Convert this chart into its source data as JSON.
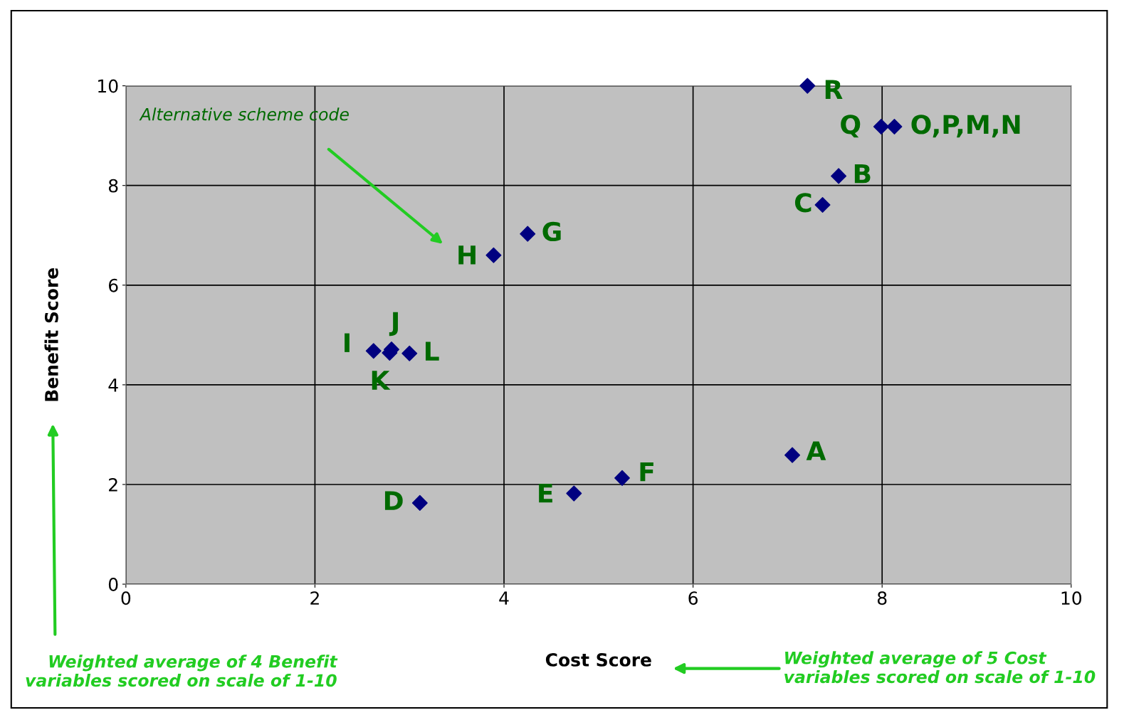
{
  "chart_data": {
    "type": "scatter",
    "xlabel": "Cost Score",
    "ylabel": "Benefit Score",
    "xlim": [
      0,
      10
    ],
    "ylim": [
      0,
      10
    ],
    "xticks": [
      0,
      2,
      4,
      6,
      8,
      10
    ],
    "yticks": [
      0,
      2,
      4,
      6,
      8,
      10
    ],
    "grid": true,
    "marker": "diamond",
    "legend": false,
    "series": [
      {
        "color": "#000080",
        "x": [
          7.21,
          7.99,
          8.13,
          7.54,
          7.37,
          4.25,
          3.89,
          2.62,
          2.81,
          2.79,
          3.0,
          7.05,
          5.25,
          4.74,
          3.11
        ],
        "values": [
          10.0,
          9.18,
          9.18,
          8.19,
          7.61,
          7.03,
          6.6,
          4.68,
          4.71,
          4.64,
          4.63,
          2.59,
          2.13,
          1.82,
          1.63
        ]
      }
    ],
    "annotations": [
      {
        "text": "R",
        "x": 7.21,
        "y": 10.0
      },
      {
        "text": "Q",
        "x": 7.99,
        "y": 9.18
      },
      {
        "text": "O,P,M,N",
        "x": 8.13,
        "y": 9.18
      },
      {
        "text": "B",
        "x": 7.54,
        "y": 8.19
      },
      {
        "text": "C",
        "x": 7.37,
        "y": 7.61
      },
      {
        "text": "G",
        "x": 4.25,
        "y": 7.03
      },
      {
        "text": "H",
        "x": 3.89,
        "y": 6.6
      },
      {
        "text": "I",
        "x": 2.62,
        "y": 4.68
      },
      {
        "text": "J",
        "x": 2.81,
        "y": 4.71
      },
      {
        "text": "K",
        "x": 2.79,
        "y": 4.64
      },
      {
        "text": "L",
        "x": 3.0,
        "y": 4.63
      },
      {
        "text": "A",
        "x": 7.05,
        "y": 2.59
      },
      {
        "text": "F",
        "x": 5.25,
        "y": 2.13
      },
      {
        "text": "E",
        "x": 4.74,
        "y": 1.82
      },
      {
        "text": "D",
        "x": 3.11,
        "y": 1.63
      },
      "Alternative scheme code",
      "Weighted average of 4 Benefit variables scored on scale of 1-10",
      "Weighted average of 5 Cost variables scored on scale of 1-10"
    ]
  }
}
